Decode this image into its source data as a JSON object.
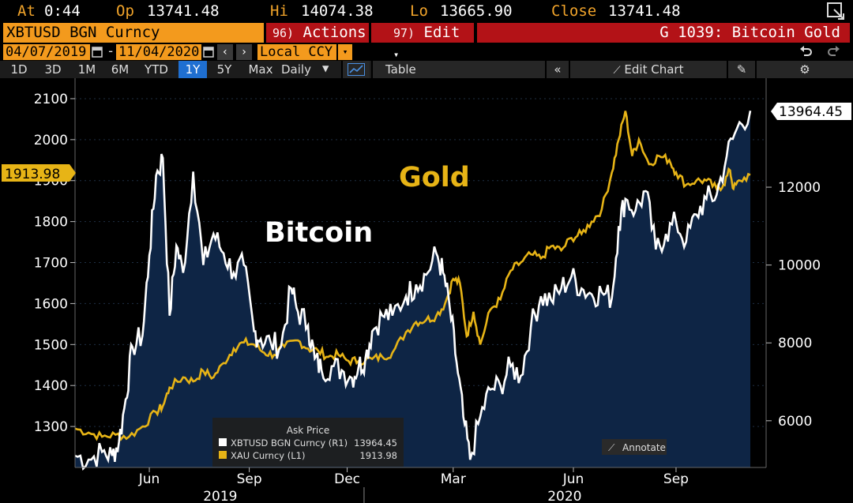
{
  "quote": {
    "at_label": "At",
    "at_value": "0:44",
    "op_label": "Op",
    "op_value": "13741.48",
    "hi_label": "Hi",
    "hi_value": "14074.38",
    "lo_label": "Lo",
    "lo_value": "13665.90",
    "close_label": "Close",
    "close_value": "13741.48"
  },
  "header": {
    "security": "XBTUSD BGN Curncy",
    "actions_num": "96)",
    "actions_label": "Actions",
    "edit_num": "97)",
    "edit_label": "Edit",
    "title": "G 1039: Bitcoin Gold"
  },
  "dates": {
    "start": "04/07/2019",
    "end": "11/04/2020",
    "currency": "Local CCY"
  },
  "periods": [
    "1D",
    "3D",
    "1M",
    "6M",
    "YTD",
    "1Y",
    "5Y",
    "Max"
  ],
  "active_period": "1Y",
  "frequency": "Daily",
  "toolbar": {
    "table_label": "Table",
    "edit_chart_label": "Edit Chart"
  },
  "colors": {
    "bitcoin": "#ffffff",
    "gold": "#e7b416",
    "area": "#0e2545",
    "accent": "#f39a1d",
    "red": "#b31217"
  },
  "chart_data": {
    "type": "line",
    "title": "",
    "left_axis": {
      "ticks": [
        1300,
        1400,
        1500,
        1600,
        1700,
        1800,
        1900,
        2000,
        2100
      ],
      "range": [
        1200,
        2150
      ]
    },
    "right_axis": {
      "ticks": [
        6000,
        8000,
        10000,
        12000
      ],
      "range": [
        4800,
        14800
      ]
    },
    "x_months": [
      "Jun",
      "Sep",
      "Dec",
      "Mar",
      "Jun",
      "Sep"
    ],
    "x_years": [
      "2019",
      "2020"
    ],
    "annotations": {
      "bitcoin": "Bitcoin",
      "gold": "Gold"
    },
    "last_values": {
      "bitcoin": "13964.45",
      "gold": "1913.98"
    },
    "series": [
      {
        "name": "XBTUSD BGN Curncy (R1)",
        "legend_value": "13964.45",
        "axis": "right",
        "t": [
          0,
          0.02,
          0.04,
          0.055,
          0.065,
          0.075,
          0.085,
          0.1,
          0.11,
          0.12,
          0.13,
          0.14,
          0.15,
          0.16,
          0.175,
          0.19,
          0.205,
          0.22,
          0.235,
          0.25,
          0.265,
          0.275,
          0.29,
          0.305,
          0.32,
          0.33,
          0.345,
          0.355,
          0.365,
          0.38,
          0.395,
          0.41,
          0.42,
          0.43,
          0.44,
          0.455,
          0.47,
          0.49,
          0.505,
          0.52,
          0.535,
          0.545,
          0.555,
          0.565,
          0.575,
          0.585,
          0.6,
          0.615,
          0.63,
          0.645,
          0.66,
          0.675,
          0.69,
          0.705,
          0.72,
          0.735,
          0.75,
          0.765,
          0.78,
          0.795,
          0.805,
          0.815,
          0.83,
          0.845,
          0.86,
          0.875,
          0.89,
          0.905,
          0.92,
          0.935,
          0.95,
          0.965,
          0.98,
          1.0
        ],
        "y": [
          5100,
          5000,
          5200,
          5100,
          5450,
          6550,
          7900,
          8200,
          10250,
          12300,
          12750,
          8700,
          10500,
          9800,
          12400,
          10000,
          10800,
          10300,
          9800,
          10000,
          8300,
          8100,
          8000,
          7900,
          9400,
          8800,
          8450,
          7600,
          7300,
          7400,
          7300,
          7100,
          7400,
          7600,
          8300,
          8700,
          8700,
          9200,
          9500,
          9750,
          10300,
          9800,
          8900,
          7500,
          6100,
          5000,
          6100,
          6800,
          6900,
          7400,
          7150,
          8400,
          9200,
          9100,
          9400,
          9700,
          9400,
          9250,
          9300,
          9150,
          11000,
          11700,
          11400,
          11900,
          10400,
          10800,
          11100,
          10600,
          11300,
          11700,
          11800,
          12800,
          13500,
          13964.45
        ]
      },
      {
        "name": "XAU Curncy (L1)",
        "legend_value": "1913.98",
        "axis": "left",
        "t": [
          0,
          0.02,
          0.04,
          0.06,
          0.08,
          0.1,
          0.12,
          0.13,
          0.14,
          0.16,
          0.175,
          0.19,
          0.205,
          0.22,
          0.235,
          0.25,
          0.265,
          0.28,
          0.295,
          0.31,
          0.33,
          0.345,
          0.36,
          0.375,
          0.39,
          0.405,
          0.42,
          0.44,
          0.455,
          0.47,
          0.49,
          0.505,
          0.52,
          0.535,
          0.548,
          0.56,
          0.57,
          0.58,
          0.59,
          0.6,
          0.615,
          0.63,
          0.645,
          0.66,
          0.675,
          0.69,
          0.705,
          0.72,
          0.735,
          0.75,
          0.765,
          0.78,
          0.795,
          0.805,
          0.815,
          0.825,
          0.835,
          0.85,
          0.865,
          0.88,
          0.89,
          0.905,
          0.92,
          0.935,
          0.95,
          0.96,
          0.97,
          0.975,
          0.985,
          1.0
        ],
        "y": [
          1295,
          1285,
          1275,
          1280,
          1275,
          1300,
          1335,
          1350,
          1395,
          1420,
          1410,
          1435,
          1420,
          1455,
          1490,
          1505,
          1500,
          1480,
          1475,
          1495,
          1510,
          1490,
          1485,
          1470,
          1475,
          1460,
          1460,
          1465,
          1470,
          1480,
          1530,
          1555,
          1560,
          1570,
          1600,
          1660,
          1650,
          1520,
          1580,
          1500,
          1585,
          1610,
          1680,
          1700,
          1720,
          1710,
          1740,
          1730,
          1760,
          1770,
          1800,
          1830,
          1920,
          2000,
          2070,
          1960,
          2000,
          1940,
          1960,
          1950,
          1920,
          1890,
          1900,
          1900,
          1880,
          1890,
          1925,
          1880,
          1900,
          1913.98
        ]
      }
    ],
    "legend": {
      "header": "Ask Price"
    }
  },
  "annotate_label": "Annotate"
}
